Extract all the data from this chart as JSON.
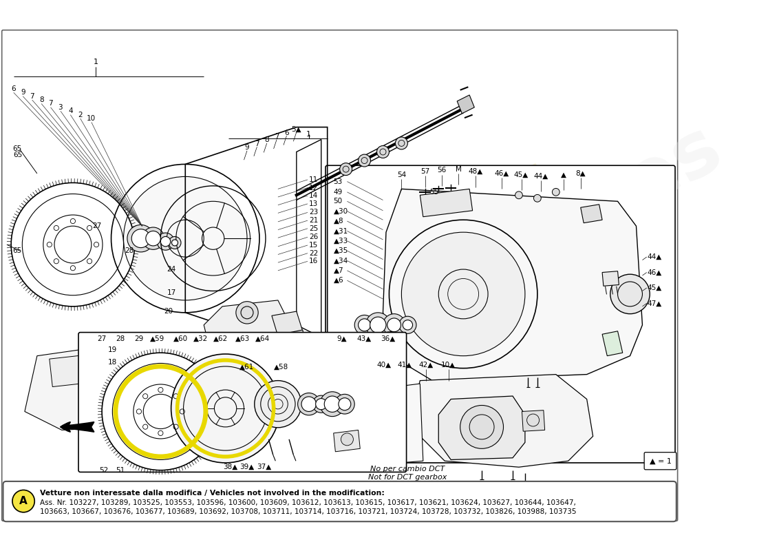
{
  "background_color": "#ffffff",
  "bottom_box": {
    "circle_label": "A",
    "circle_color": "#f5e642",
    "bold_text": "Vetture non interessate dalla modifica / Vehicles not involved in the modification:",
    "line1": "Ass. Nr. 103227, 103289, 103525, 103553, 103596, 103600, 103609, 103612, 103613, 103615, 103617, 103621, 103624, 103627, 103644, 103647,",
    "line2": "103663, 103667, 103676, 103677, 103689, 103692, 103708, 103711, 103714, 103716, 103721, 103724, 103728, 103732, 103826, 103988, 103735"
  },
  "watermark_lines": [
    "eurospares"
  ],
  "fig_width": 11.0,
  "fig_height": 8.0,
  "dpi": 100
}
